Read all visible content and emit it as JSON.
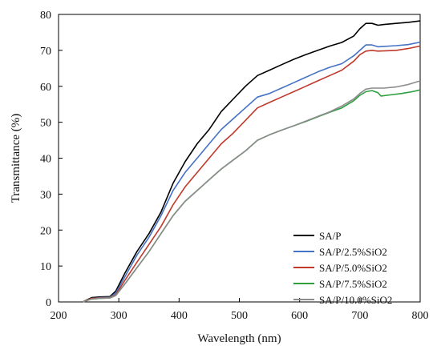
{
  "chart_data": {
    "type": "line",
    "xlabel": "Wavelength (nm)",
    "ylabel": "Transmittance (%)",
    "xlim": [
      200,
      800
    ],
    "ylim": [
      0,
      80
    ],
    "xticks": [
      200,
      300,
      400,
      500,
      600,
      700,
      800
    ],
    "yticks": [
      0,
      10,
      20,
      30,
      40,
      50,
      60,
      70,
      80
    ],
    "grid": false,
    "legend_position": "bottom-right",
    "series": [
      {
        "name": "SA/P",
        "color": "#000000",
        "points": [
          [
            240,
            0
          ],
          [
            255,
            1.2
          ],
          [
            270,
            1.4
          ],
          [
            285,
            1.5
          ],
          [
            295,
            3
          ],
          [
            310,
            8
          ],
          [
            330,
            14
          ],
          [
            350,
            19
          ],
          [
            370,
            25
          ],
          [
            390,
            33
          ],
          [
            410,
            39
          ],
          [
            430,
            44
          ],
          [
            450,
            48
          ],
          [
            470,
            53
          ],
          [
            490,
            56.5
          ],
          [
            510,
            60
          ],
          [
            530,
            63
          ],
          [
            550,
            64.5
          ],
          [
            570,
            66
          ],
          [
            590,
            67.5
          ],
          [
            610,
            68.8
          ],
          [
            630,
            70
          ],
          [
            650,
            71.2
          ],
          [
            670,
            72.2
          ],
          [
            690,
            74
          ],
          [
            700,
            76
          ],
          [
            710,
            77.5
          ],
          [
            720,
            77.5
          ],
          [
            730,
            77
          ],
          [
            740,
            77.2
          ],
          [
            760,
            77.5
          ],
          [
            780,
            77.8
          ],
          [
            800,
            78.2
          ]
        ]
      },
      {
        "name": "SA/P/2.5%SiO2",
        "color": "#4472C4",
        "points": [
          [
            240,
            0
          ],
          [
            255,
            1
          ],
          [
            270,
            1.2
          ],
          [
            285,
            1.3
          ],
          [
            295,
            2.5
          ],
          [
            310,
            7
          ],
          [
            330,
            13
          ],
          [
            350,
            18
          ],
          [
            370,
            24
          ],
          [
            390,
            31
          ],
          [
            410,
            36
          ],
          [
            430,
            40
          ],
          [
            450,
            44
          ],
          [
            470,
            48
          ],
          [
            490,
            51
          ],
          [
            510,
            54
          ],
          [
            530,
            57
          ],
          [
            550,
            58
          ],
          [
            570,
            59.5
          ],
          [
            590,
            61
          ],
          [
            610,
            62.5
          ],
          [
            630,
            64
          ],
          [
            650,
            65.3
          ],
          [
            670,
            66.3
          ],
          [
            690,
            68.5
          ],
          [
            700,
            70
          ],
          [
            710,
            71.5
          ],
          [
            720,
            71.5
          ],
          [
            730,
            71
          ],
          [
            760,
            71.3
          ],
          [
            780,
            71.6
          ],
          [
            800,
            72.3
          ]
        ]
      },
      {
        "name": "SA/P/5.0%SiO2",
        "color": "#C0392B",
        "points": [
          [
            240,
            0
          ],
          [
            255,
            1
          ],
          [
            270,
            1.1
          ],
          [
            285,
            1.2
          ],
          [
            295,
            2
          ],
          [
            310,
            6
          ],
          [
            330,
            11
          ],
          [
            350,
            16
          ],
          [
            370,
            21
          ],
          [
            390,
            27
          ],
          [
            410,
            32
          ],
          [
            430,
            36
          ],
          [
            450,
            40
          ],
          [
            470,
            44
          ],
          [
            490,
            47
          ],
          [
            510,
            50.5
          ],
          [
            530,
            54
          ],
          [
            550,
            55.5
          ],
          [
            570,
            57
          ],
          [
            590,
            58.5
          ],
          [
            610,
            60
          ],
          [
            630,
            61.5
          ],
          [
            650,
            63
          ],
          [
            670,
            64.5
          ],
          [
            690,
            67
          ],
          [
            700,
            68.8
          ],
          [
            710,
            69.8
          ],
          [
            720,
            70
          ],
          [
            730,
            69.8
          ],
          [
            760,
            70
          ],
          [
            780,
            70.5
          ],
          [
            800,
            71.2
          ]
        ]
      },
      {
        "name": "SA/P/7.5%SiO2",
        "color": "#2E9E3E",
        "points": [
          [
            240,
            0
          ],
          [
            255,
            0.8
          ],
          [
            270,
            1
          ],
          [
            285,
            1.1
          ],
          [
            295,
            1.8
          ],
          [
            310,
            5
          ],
          [
            330,
            9.5
          ],
          [
            350,
            14
          ],
          [
            370,
            19
          ],
          [
            390,
            24
          ],
          [
            410,
            28
          ],
          [
            430,
            31
          ],
          [
            450,
            34
          ],
          [
            470,
            37
          ],
          [
            490,
            39.5
          ],
          [
            510,
            42
          ],
          [
            530,
            45
          ],
          [
            550,
            46.5
          ],
          [
            570,
            47.8
          ],
          [
            590,
            49
          ],
          [
            610,
            50.2
          ],
          [
            630,
            51.5
          ],
          [
            650,
            52.8
          ],
          [
            670,
            54
          ],
          [
            690,
            56
          ],
          [
            700,
            57.5
          ],
          [
            710,
            58.5
          ],
          [
            720,
            58.8
          ],
          [
            730,
            58.2
          ],
          [
            735,
            57.3
          ],
          [
            750,
            57.6
          ],
          [
            770,
            58
          ],
          [
            790,
            58.6
          ],
          [
            800,
            59
          ]
        ]
      },
      {
        "name": "SA/P/10.0%SiO2",
        "color": "#8C8C8C",
        "points": [
          [
            240,
            0
          ],
          [
            255,
            0.8
          ],
          [
            270,
            1
          ],
          [
            285,
            1.1
          ],
          [
            295,
            1.8
          ],
          [
            310,
            5
          ],
          [
            330,
            9.5
          ],
          [
            350,
            14
          ],
          [
            370,
            19
          ],
          [
            390,
            24
          ],
          [
            410,
            28
          ],
          [
            430,
            31
          ],
          [
            450,
            34
          ],
          [
            470,
            37
          ],
          [
            490,
            39.5
          ],
          [
            510,
            42
          ],
          [
            530,
            45
          ],
          [
            550,
            46.5
          ],
          [
            570,
            47.8
          ],
          [
            590,
            49
          ],
          [
            610,
            50.3
          ],
          [
            630,
            51.6
          ],
          [
            650,
            52.9
          ],
          [
            670,
            54.5
          ],
          [
            690,
            56.5
          ],
          [
            700,
            58
          ],
          [
            710,
            59.2
          ],
          [
            720,
            59.5
          ],
          [
            740,
            59.5
          ],
          [
            760,
            59.8
          ],
          [
            780,
            60.5
          ],
          [
            800,
            61.5
          ]
        ]
      }
    ]
  }
}
